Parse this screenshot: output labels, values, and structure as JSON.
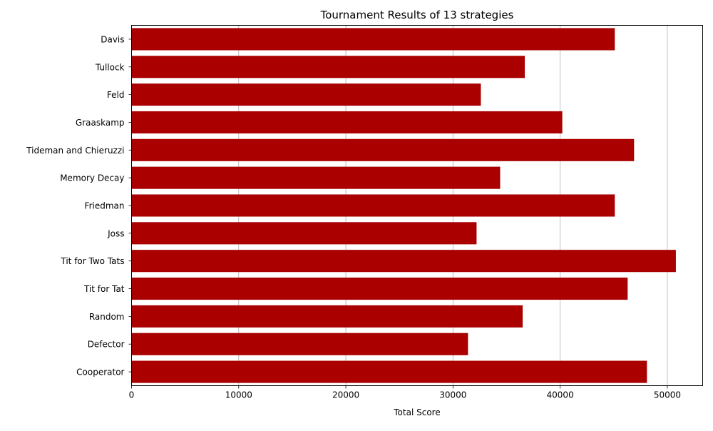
{
  "chart_data": {
    "type": "bar",
    "orientation": "horizontal",
    "title": "Tournament Results of 13 strategies",
    "xlabel": "Total Score",
    "ylabel": "",
    "xlim": [
      0,
      53300
    ],
    "xticks": [
      0,
      10000,
      20000,
      30000,
      40000,
      50000
    ],
    "grid": "x",
    "bar_color": "#aa0000",
    "categories": [
      "Davis",
      "Tullock",
      "Feld",
      "Graaskamp",
      "Tideman and Chieruzzi",
      "Memory Decay",
      "Friedman",
      "Joss",
      "Tit for Two Tats",
      "Tit for Tat",
      "Random",
      "Defector",
      "Cooperator"
    ],
    "values": [
      45100,
      36700,
      32600,
      40200,
      46900,
      34400,
      45100,
      32200,
      50800,
      46300,
      36500,
      31400,
      48100
    ]
  }
}
